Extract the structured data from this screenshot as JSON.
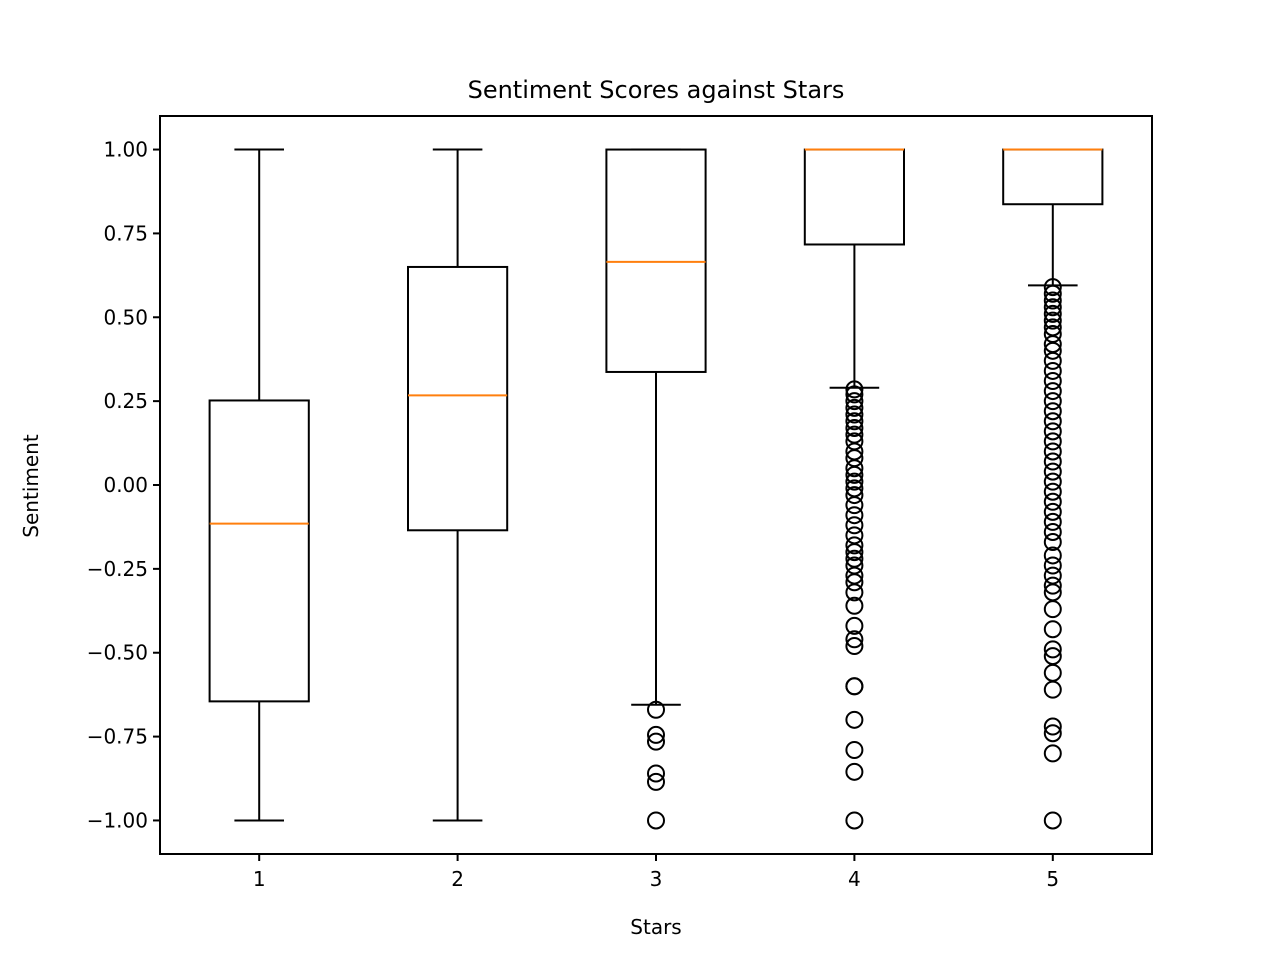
{
  "chart_data": {
    "type": "box",
    "title": "Sentiment Scores against Stars",
    "xlabel": "Stars",
    "ylabel": "Sentiment",
    "ylim": [
      -1.1,
      1.1
    ],
    "xlim": [
      0.5,
      5.5
    ],
    "yticks": [
      1.0,
      0.75,
      0.5,
      0.25,
      0.0,
      -0.25,
      -0.5,
      -0.75,
      -1.0
    ],
    "ytick_labels": [
      "1.00",
      "0.75",
      "0.50",
      "0.25",
      "0.00",
      "−0.25",
      "−0.50",
      "−0.75",
      "−1.00"
    ],
    "categories": [
      "1",
      "2",
      "3",
      "4",
      "5"
    ],
    "grid": false,
    "colors": {
      "box": "#000000",
      "median": "#ff7f0e",
      "flier": "#000000"
    },
    "boxes": [
      {
        "category": "1",
        "whisker_low": -1.0,
        "q1": -0.645,
        "median": -0.115,
        "q3": 0.252,
        "whisker_high": 1.0,
        "fliers": []
      },
      {
        "category": "2",
        "whisker_low": -1.0,
        "q1": -0.135,
        "median": 0.267,
        "q3": 0.65,
        "whisker_high": 1.0,
        "fliers": []
      },
      {
        "category": "3",
        "whisker_low": -0.655,
        "q1": 0.337,
        "median": 0.665,
        "q3": 1.0,
        "whisker_high": 1.0,
        "fliers": [
          -0.67,
          -0.745,
          -0.765,
          -0.86,
          -0.885,
          -1.0
        ]
      },
      {
        "category": "4",
        "whisker_low": 0.29,
        "q1": 0.717,
        "median": 1.0,
        "q3": 1.0,
        "whisker_high": 1.0,
        "fliers": [
          0.285,
          0.27,
          0.25,
          0.23,
          0.21,
          0.19,
          0.17,
          0.15,
          0.13,
          0.1,
          0.08,
          0.05,
          0.03,
          0.01,
          -0.01,
          -0.03,
          -0.06,
          -0.09,
          -0.12,
          -0.15,
          -0.18,
          -0.2,
          -0.22,
          -0.24,
          -0.27,
          -0.29,
          -0.32,
          -0.36,
          -0.42,
          -0.46,
          -0.48,
          -0.6,
          -0.6,
          -0.7,
          -0.79,
          -0.855,
          -1.0
        ]
      },
      {
        "category": "5",
        "whisker_low": 0.595,
        "q1": 0.837,
        "median": 1.0,
        "q3": 1.0,
        "whisker_high": 1.0,
        "fliers": [
          0.59,
          0.57,
          0.55,
          0.53,
          0.51,
          0.49,
          0.47,
          0.45,
          0.42,
          0.4,
          0.37,
          0.34,
          0.31,
          0.28,
          0.25,
          0.22,
          0.19,
          0.16,
          0.13,
          0.1,
          0.07,
          0.04,
          0.01,
          -0.02,
          -0.05,
          -0.08,
          -0.11,
          -0.14,
          -0.17,
          -0.21,
          -0.24,
          -0.27,
          -0.3,
          -0.32,
          -0.37,
          -0.43,
          -0.49,
          -0.51,
          -0.56,
          -0.61,
          -0.72,
          -0.74,
          -0.8,
          -1.0
        ]
      }
    ]
  }
}
